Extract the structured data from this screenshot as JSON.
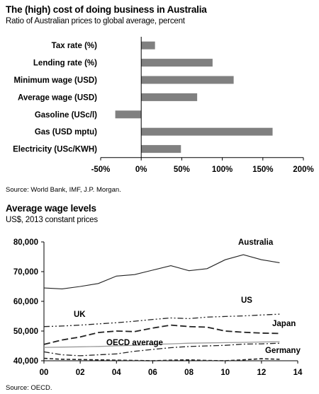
{
  "chart_data": [
    {
      "type": "bar",
      "orientation": "horizontal",
      "title": "The (high) cost of doing business in Australia",
      "subtitle": "Ratio of Australian prices to global average, percent",
      "categories": [
        "Tax rate (%)",
        "Lending rate (%)",
        "Minimum wage (USD)",
        "Average wage (USD)",
        "Gasoline (USc/l)",
        "Gas (USD mptu)",
        "Electricity (USc/KWH)"
      ],
      "values": [
        17,
        88,
        114,
        69,
        -32,
        162,
        49
      ],
      "xlim": [
        -50,
        200
      ],
      "xticks": [
        "-50%",
        "0%",
        "50%",
        "100%",
        "150%",
        "200%"
      ],
      "bar_color": "#808080",
      "grid": false,
      "source": "Source: World Bank, IMF, J.P. Morgan."
    },
    {
      "type": "line",
      "title": "Average wage levels",
      "subtitle": "US$, 2013 constant prices",
      "x": [
        2000,
        2001,
        2002,
        2003,
        2004,
        2005,
        2006,
        2007,
        2008,
        2009,
        2010,
        2011,
        2012,
        2013
      ],
      "xticks": [
        "00",
        "02",
        "04",
        "06",
        "08",
        "10",
        "12",
        "14"
      ],
      "ylim": [
        40000,
        80000
      ],
      "yticks": [
        "40,000",
        "50,000",
        "60,000",
        "70,000",
        "80,000"
      ],
      "grid": false,
      "series": [
        {
          "name": "Australia",
          "style": "solid",
          "values": [
            64500,
            64200,
            65000,
            66000,
            68500,
            69000,
            70500,
            72000,
            70300,
            71000,
            74000,
            75700,
            74000,
            73000
          ]
        },
        {
          "name": "US",
          "style": "dashdotdot",
          "values": [
            51500,
            51700,
            52000,
            52400,
            52800,
            53300,
            53900,
            54400,
            54200,
            54700,
            54900,
            55100,
            55400,
            55700
          ]
        },
        {
          "name": "UK",
          "style": "longdash",
          "values": [
            45500,
            47000,
            48000,
            49500,
            50000,
            49800,
            51000,
            52000,
            51500,
            51300,
            50000,
            49600,
            49300,
            49200
          ]
        },
        {
          "name": "Japan",
          "style": "dashdot",
          "values": [
            43000,
            42000,
            41700,
            42000,
            42300,
            43200,
            43800,
            44400,
            44800,
            45000,
            45200,
            45600,
            45700,
            45900
          ]
        },
        {
          "name": "OECD average",
          "style": "solid-gray",
          "values": [
            44500,
            44600,
            44700,
            44800,
            45000,
            45200,
            45500,
            45700,
            45900,
            46000,
            46100,
            46200,
            46300,
            46400
          ]
        },
        {
          "name": "Germany",
          "style": "dashed",
          "values": [
            40800,
            40500,
            40400,
            40300,
            40200,
            40100,
            40000,
            40200,
            40300,
            40100,
            40000,
            40300,
            40700,
            40500
          ]
        }
      ],
      "source": "Source: OECD."
    }
  ]
}
